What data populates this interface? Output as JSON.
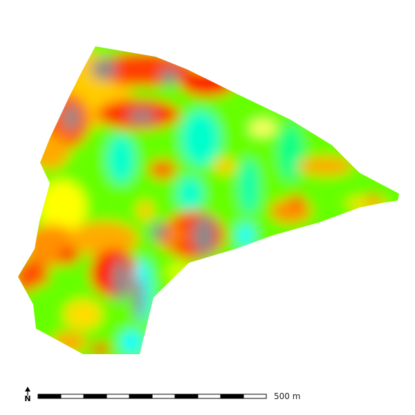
{
  "map": {
    "field_type": "continuous raster",
    "palette": [
      "#8a8a8a",
      "#ff1a00",
      "#ff8c00",
      "#ffff00",
      "#66ff00",
      "#00ff66",
      "#00ffff"
    ],
    "background": "#ffffff"
  },
  "north_arrow": {
    "label": "N",
    "icon": "north-arrow-icon"
  },
  "scale_bar": {
    "label": "500 m",
    "segments": 10,
    "colors": [
      "#000000",
      "#ffffff"
    ]
  }
}
